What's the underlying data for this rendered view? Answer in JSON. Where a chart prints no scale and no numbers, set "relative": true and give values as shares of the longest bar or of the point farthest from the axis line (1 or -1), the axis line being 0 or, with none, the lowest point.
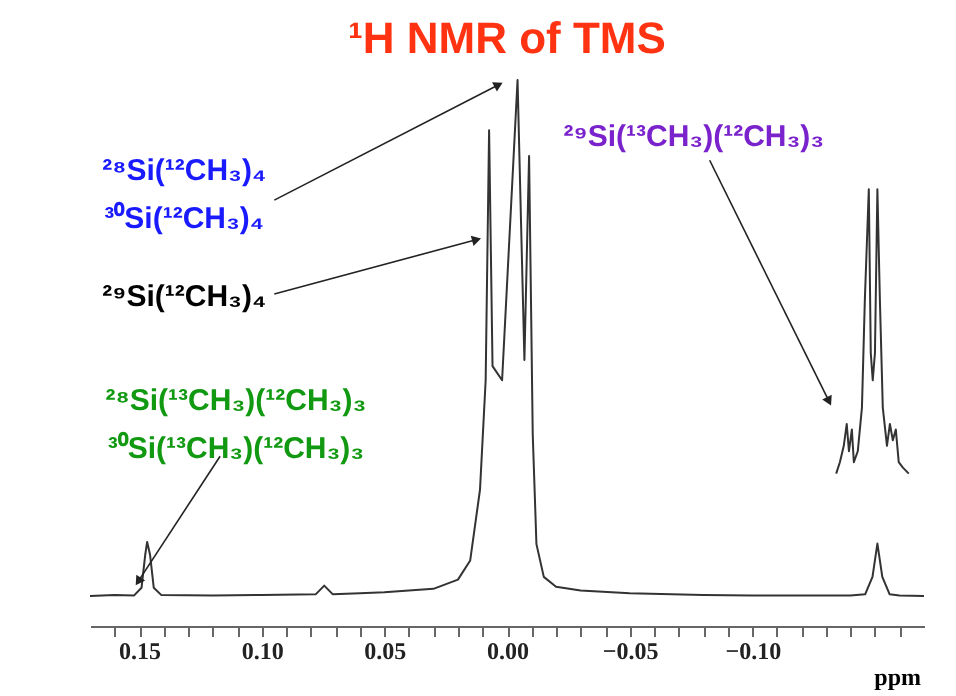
{
  "chart_data": {
    "type": "line",
    "title": "¹H NMR of TMS",
    "xlabel": "ppm",
    "relative": true,
    "grid": false,
    "marker": "none",
    "xlim": [
      0.17,
      -0.17
    ],
    "xticks": [
      {
        "value": 0.16,
        "label": null
      },
      0.15,
      {
        "value": 0.14,
        "label": null
      },
      {
        "value": 0.13,
        "label": null
      },
      {
        "value": 0.12,
        "label": null
      },
      {
        "value": 0.11,
        "label": null
      },
      {
        "value": 0.1,
        "label": "0.10"
      },
      {
        "value": 0.09,
        "label": null
      },
      {
        "value": 0.08,
        "label": null
      },
      {
        "value": 0.07,
        "label": null
      },
      {
        "value": 0.06,
        "label": null
      },
      0.05,
      {
        "value": 0.04,
        "label": null
      },
      {
        "value": 0.03,
        "label": null
      },
      {
        "value": 0.02,
        "label": null
      },
      {
        "value": 0.01,
        "label": null
      },
      {
        "value": 0,
        "label": "0.00"
      },
      {
        "value": -0.01,
        "label": null
      },
      {
        "value": -0.02,
        "label": null
      },
      {
        "value": -0.03,
        "label": null
      },
      {
        "value": -0.04,
        "label": null
      },
      {
        "value": -0.05,
        "label": "−0.05"
      },
      {
        "value": -0.06,
        "label": null
      },
      {
        "value": -0.07,
        "label": null
      },
      {
        "value": -0.08,
        "label": null
      },
      {
        "value": -0.09,
        "label": null
      },
      {
        "value": -0.1,
        "label": "−0.10"
      },
      {
        "value": -0.11,
        "label": null
      },
      {
        "value": -0.12,
        "label": null
      },
      {
        "value": -0.13,
        "label": null
      },
      {
        "value": -0.14,
        "label": null
      },
      {
        "value": -0.15,
        "label": null
      },
      {
        "value": -0.16,
        "label": null
      }
    ],
    "series": [
      {
        "color": "#333333",
        "x": [
          0.17,
          0.16,
          0.152,
          0.149,
          0.1475,
          0.1467,
          0.1455,
          0.144,
          0.141,
          0.12,
          0.1,
          0.078,
          0.0745,
          0.071,
          0.06,
          0.05,
          0.04,
          0.03,
          0.02,
          0.015,
          0.011,
          0.0087,
          0.0073,
          0.0059,
          0.002,
          -0.0043,
          -0.0071,
          -0.009,
          -0.0105,
          -0.012,
          -0.015,
          -0.02,
          -0.03,
          -0.05,
          -0.08,
          -0.1,
          -0.14,
          -0.146,
          -0.149,
          -0.151,
          -0.153,
          -0.156,
          -0.16,
          -0.17
        ],
        "values": [
          0.055,
          0.057,
          0.056,
          0.07,
          0.13,
          0.154,
          0.13,
          0.07,
          0.057,
          0.056,
          0.057,
          0.058,
          0.074,
          0.058,
          0.06,
          0.062,
          0.065,
          0.068,
          0.085,
          0.12,
          0.25,
          0.45,
          0.908,
          0.476,
          0.45,
          1,
          0.487,
          0.861,
          0.35,
          0.15,
          0.09,
          0.072,
          0.065,
          0.06,
          0.057,
          0.056,
          0.056,
          0.058,
          0.09,
          0.151,
          0.09,
          0.058,
          0.056,
          0.055
        ]
      },
      {
        "color": "#333333",
        "x": [
          -0.1342,
          -0.1357,
          -0.1373,
          -0.1385,
          -0.1394,
          -0.1406,
          -0.1414,
          -0.143,
          -0.1447,
          -0.1459,
          -0.1475,
          -0.1483,
          -0.1491,
          -0.15,
          -0.151,
          -0.152,
          -0.1532,
          -0.1549,
          -0.1561,
          -0.1573,
          -0.1585,
          -0.1597,
          -0.1614,
          -0.1638
        ],
        "values": [
          0.279,
          0.3,
          0.33,
          0.37,
          0.32,
          0.36,
          0.3,
          0.32,
          0.4,
          0.6,
          0.8,
          0.5,
          0.45,
          0.5,
          0.8,
          0.6,
          0.4,
          0.33,
          0.37,
          0.34,
          0.36,
          0.3,
          0.29,
          0.279
        ]
      }
    ],
    "annotations": [
      {
        "text": "²⁸Si(¹²CH₃)₄\n³⁰Si(¹²CH₃)₄",
        "x": 0.004,
        "y": 0.99
      },
      {
        "text": "²⁹Si(¹²CH₃)₄",
        "x": 0.013,
        "y": 0.707
      },
      {
        "text": "²⁸Si(¹³CH₃)(¹²CH₃)₃\n³⁰Si(¹³CH₃)(¹²CH₃)₃",
        "x": 0.15,
        "y": 0.084
      },
      {
        "text": "²⁹Si(¹³CH₃)(¹²CH₃)₃",
        "x": -0.131,
        "y": 0.414
      }
    ]
  }
}
